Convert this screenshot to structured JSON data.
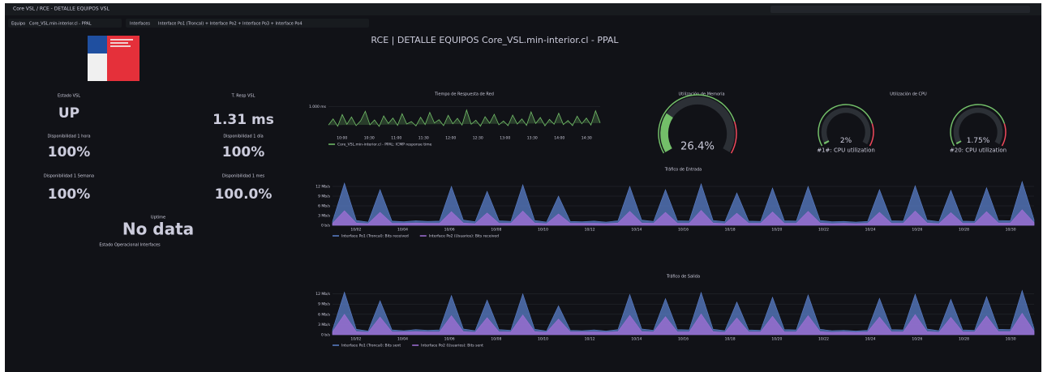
{
  "header": {
    "breadcrumb": "Core VSL / RCE - DETALLE EQUIPOS VSL",
    "var1_label": "Equipo",
    "var1_value": "Core_VSL.min-interior.cl - PPAL",
    "var2_label": "Interfaces",
    "var2_value": "Interface Po1 (Troncal) + Interface Po2 + Interface Po3 + Interface Po4"
  },
  "title": "RCE | DETALLE EQUIPOS Core_VSL.min-interior.cl - PPAL",
  "stats": [
    {
      "title": "Estado VSL",
      "value": "UP"
    },
    {
      "title": "T. Resp VSL",
      "value": "1.31 ms"
    },
    {
      "title": "Disponibilidad 1 hora",
      "value": "100%"
    },
    {
      "title": "Disponibilidad 1 día",
      "value": "100%"
    },
    {
      "title": "Disponibilidad 1 Semana",
      "value": "100%"
    },
    {
      "title": "Disponibilidad 1 mes",
      "value": "100.0%"
    },
    {
      "title": "Uptime",
      "value": "No data"
    }
  ],
  "status_title": "Estado Operacional Interfaces",
  "chart_data": [
    {
      "type": "line",
      "title": "Tiempo de Respuesta de Red",
      "series": [
        {
          "name": "Core_VSL.min-interior.cl - PPAL: ICMP response time",
          "color": "#73bf69",
          "values": [
            0.32,
            0.55,
            0.28,
            0.71,
            0.35,
            0.62,
            0.3,
            0.48,
            0.83,
            0.33,
            0.51,
            0.27,
            0.66,
            0.38,
            0.58,
            0.31,
            0.74,
            0.36,
            0.45,
            0.29,
            0.61,
            0.34,
            0.79,
            0.4,
            0.52,
            0.3,
            0.68,
            0.37,
            0.57,
            0.32,
            0.88,
            0.35,
            0.5,
            0.28,
            0.63,
            0.39,
            0.72,
            0.33,
            0.47,
            0.3,
            0.69,
            0.36,
            0.55,
            0.31,
            0.81,
            0.38,
            0.6,
            0.29,
            0.53,
            0.35,
            0.76,
            0.34,
            0.49,
            0.3,
            0.65,
            0.37,
            0.58,
            0.32,
            0.85,
            0.4
          ]
        }
      ],
      "ylim": [
        0,
        1.2
      ],
      "yticks": [
        {
          "value": 1,
          "label": "1.000 ms"
        }
      ],
      "x_labels": [
        "10:00",
        "10:30",
        "11:00",
        "11:30",
        "12:00",
        "12:30",
        "13:00",
        "13:30",
        "14:00",
        "14:30"
      ]
    },
    {
      "type": "gauge",
      "title": "Utilización de Memoria",
      "values": [
        26.4
      ],
      "value_labels": [
        "26.4%"
      ],
      "ylim": [
        0,
        100
      ],
      "color": "#73bf69"
    },
    {
      "type": "gauge",
      "title": "Utilización de CPU",
      "categories": [
        "#1#: CPU utilization",
        "#20: CPU utilization"
      ],
      "values": [
        2,
        1.75
      ],
      "value_labels": [
        "2%",
        "1.75%"
      ],
      "ylim": [
        0,
        100
      ],
      "color": "#73bf69"
    },
    {
      "type": "area",
      "title": "Tráfico de Entrada",
      "series": [
        {
          "name": "Interface Po1 (Troncal): Bits received",
          "color": "#5a7fc9",
          "values": [
            1.2,
            13,
            1.5,
            1.0,
            11,
            1.3,
            1.1,
            1.4,
            1.2,
            1.3,
            12,
            1.6,
            1.1,
            10.5,
            1.4,
            1.2,
            12.5,
            1.5,
            1.0,
            9,
            1.2,
            1.1,
            1.3,
            1.0,
            1.4,
            12,
            1.6,
            1.2,
            11,
            1.4,
            1.3,
            12.8,
            1.5,
            1.1,
            10,
            1.3,
            1.2,
            11.5,
            1.4,
            1.3,
            12,
            1.5,
            1.1,
            1.2,
            1.0,
            1.2,
            11,
            1.4,
            1.3,
            12.2,
            1.6,
            1.1,
            10.8,
            1.3,
            1.2,
            11.6,
            1.5,
            1.4,
            13.5,
            1.7
          ]
        },
        {
          "name": "Interface Po2 (Usuarios): Bits received",
          "color": "#a16fd6",
          "values": [
            0.6,
            4.5,
            0.7,
            0.5,
            4,
            0.6,
            0.6,
            0.7,
            0.6,
            0.6,
            4.2,
            0.7,
            0.5,
            3.8,
            0.6,
            0.6,
            4.4,
            0.7,
            0.5,
            3.5,
            0.6,
            0.6,
            0.6,
            0.5,
            0.7,
            4.3,
            0.7,
            0.6,
            4,
            0.6,
            0.6,
            4.6,
            0.7,
            0.5,
            3.7,
            0.6,
            0.6,
            4.1,
            0.6,
            0.6,
            4.3,
            0.7,
            0.5,
            0.6,
            0.5,
            0.6,
            4,
            0.6,
            0.6,
            4.4,
            0.7,
            0.5,
            3.9,
            0.6,
            0.6,
            4.2,
            0.7,
            0.7,
            4.8,
            0.8
          ]
        }
      ],
      "ylim": [
        0,
        15
      ],
      "yticks": [
        {
          "value": 0,
          "label": "0 b/s"
        },
        {
          "value": 3,
          "label": "3 Mb/s"
        },
        {
          "value": 6,
          "label": "6 Mb/s"
        },
        {
          "value": 9,
          "label": "9 Mb/s"
        },
        {
          "value": 12,
          "label": "12 Mb/s"
        }
      ],
      "x_labels": [
        "10/02",
        "10/04",
        "10/06",
        "10/08",
        "10/10",
        "10/12",
        "10/14",
        "10/16",
        "10/18",
        "10/20",
        "10/22",
        "10/24",
        "10/26",
        "10/28",
        "10/30"
      ]
    },
    {
      "type": "area",
      "title": "Tráfico de Salida",
      "series": [
        {
          "name": "Interface Po1 (Troncal): Bits sent",
          "color": "#5a7fc9",
          "values": [
            1.4,
            12.5,
            1.6,
            1.1,
            10,
            1.4,
            1.2,
            1.5,
            1.3,
            1.4,
            11.5,
            1.7,
            1.2,
            10.2,
            1.5,
            1.3,
            12,
            1.6,
            1.1,
            8.5,
            1.3,
            1.2,
            1.4,
            1.1,
            1.5,
            11.8,
            1.7,
            1.3,
            10.6,
            1.5,
            1.4,
            12.4,
            1.6,
            1.2,
            9.6,
            1.4,
            1.3,
            11,
            1.5,
            1.4,
            11.7,
            1.6,
            1.2,
            1.3,
            1.1,
            1.3,
            10.7,
            1.5,
            1.4,
            11.9,
            1.7,
            1.2,
            10.4,
            1.4,
            1.3,
            11.2,
            1.6,
            1.5,
            13,
            1.8
          ]
        },
        {
          "name": "Interface Po2 (Usuarios): Bits sent",
          "color": "#a16fd6",
          "values": [
            0.8,
            6,
            0.9,
            0.7,
            5.2,
            0.8,
            0.8,
            0.9,
            0.8,
            0.8,
            5.6,
            0.9,
            0.7,
            5,
            0.8,
            0.8,
            5.8,
            0.9,
            0.7,
            4.6,
            0.8,
            0.8,
            0.8,
            0.7,
            0.9,
            5.7,
            0.9,
            0.8,
            5.3,
            0.8,
            0.8,
            6.1,
            0.9,
            0.7,
            4.9,
            0.8,
            0.8,
            5.4,
            0.8,
            0.8,
            5.6,
            0.9,
            0.7,
            0.8,
            0.7,
            0.8,
            5.2,
            0.8,
            0.8,
            5.9,
            0.9,
            0.7,
            5.1,
            0.8,
            0.8,
            5.5,
            0.9,
            0.9,
            6.3,
            1.0
          ]
        }
      ],
      "ylim": [
        0,
        15
      ],
      "yticks": [
        {
          "value": 0,
          "label": "0 b/s"
        },
        {
          "value": 3,
          "label": "3 Mb/s"
        },
        {
          "value": 6,
          "label": "6 Mb/s"
        },
        {
          "value": 9,
          "label": "9 Mb/s"
        },
        {
          "value": 12,
          "label": "12 Mb/s"
        }
      ],
      "x_labels": [
        "10/02",
        "10/04",
        "10/06",
        "10/08",
        "10/10",
        "10/12",
        "10/14",
        "10/16",
        "10/18",
        "10/20",
        "10/22",
        "10/24",
        "10/26",
        "10/28",
        "10/30"
      ]
    }
  ]
}
